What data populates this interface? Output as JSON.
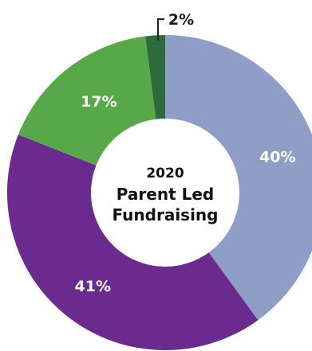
{
  "chart_data": {
    "type": "pie",
    "donut": true,
    "center_text": [
      "2020",
      "Parent Led",
      "Fundraising"
    ],
    "slices": [
      {
        "value": 40,
        "label": "40%",
        "color": "#8f9ec7"
      },
      {
        "value": 41,
        "label": "41%",
        "color": "#6a2a8e"
      },
      {
        "value": 17,
        "label": "17%",
        "color": "#56a849"
      },
      {
        "value": 2,
        "label": "2%",
        "color": "#2e6b3a"
      }
    ],
    "start_angle_deg": 0,
    "direction": "clockwise",
    "legend": "none"
  },
  "colors": {
    "background": "#ffffff",
    "center_fill": "#ffffff",
    "leader_line": "#222222"
  }
}
